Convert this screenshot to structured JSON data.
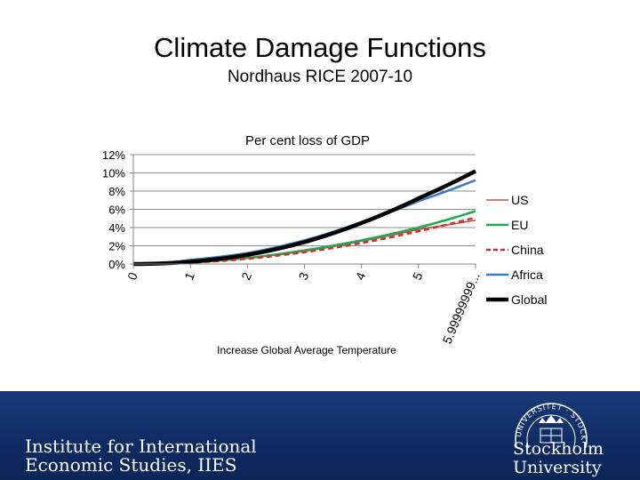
{
  "slide": {
    "title": "Climate Damage Functions",
    "subtitle": "Nordhaus RICE 2007-10"
  },
  "chart_data": {
    "type": "line",
    "title": "Per cent loss of GDP",
    "xlabel": "Increase Global Average Temperature",
    "ylabel": "",
    "categories": [
      "0",
      "1",
      "2",
      "3",
      "4",
      "5",
      "5.99999999..."
    ],
    "x": [
      0,
      1,
      2,
      3,
      4,
      5,
      6
    ],
    "ylim": [
      0,
      0.12
    ],
    "yticks": [
      0,
      0.02,
      0.04,
      0.06,
      0.08,
      0.1,
      0.12
    ],
    "ytick_labels": [
      "0%",
      "2%",
      "4%",
      "6%",
      "8%",
      "10%",
      "12%"
    ],
    "grid": true,
    "legend": "right",
    "series": [
      {
        "name": "US",
        "color": "#c0504d",
        "dash": "solid",
        "values": [
          0,
          0.0017,
          0.0063,
          0.014,
          0.025,
          0.038,
          0.048
        ]
      },
      {
        "name": "EU",
        "color": "#1eaa4e",
        "dash": "solid",
        "values": [
          0,
          0.0017,
          0.0066,
          0.015,
          0.026,
          0.04,
          0.058
        ]
      },
      {
        "name": "China",
        "color": "#d32f2f",
        "dash": "dashed",
        "values": [
          0,
          0.0015,
          0.0058,
          0.013,
          0.023,
          0.036,
          0.051
        ]
      },
      {
        "name": "Africa",
        "color": "#3c7dbf",
        "dash": "solid",
        "values": [
          0,
          0.0045,
          0.012,
          0.026,
          0.046,
          0.069,
          0.092
        ]
      },
      {
        "name": "Global",
        "color": "#000000",
        "dash": "solid",
        "values": [
          0,
          0.0025,
          0.01,
          0.024,
          0.045,
          0.072,
          0.102
        ]
      }
    ]
  },
  "footer": {
    "institute_line1": "Institute for International",
    "institute_line2": "Economic Studies, IIES",
    "university_line1": "Stockholm",
    "university_line2": "University",
    "seal_text": "UNIVERSITET · STOCKHOLM"
  },
  "colors": {
    "footer_bg": "#0f2b63",
    "axis": "#868686",
    "grid": "#8c8c8c"
  }
}
